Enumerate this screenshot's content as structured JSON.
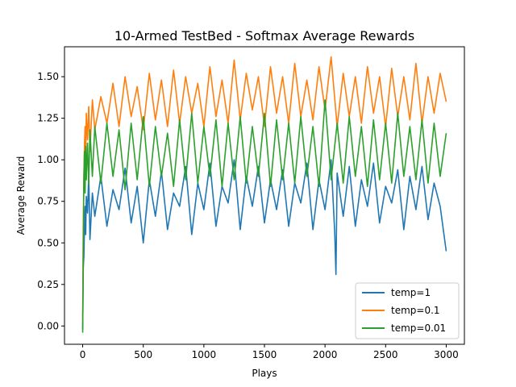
{
  "chart_data": {
    "type": "line",
    "title": "10-Armed TestBed - Softmax Average Rewards",
    "xlabel": "Plays",
    "ylabel": "Average Reward",
    "xlim": [
      -150,
      3150
    ],
    "ylim": [
      -0.11,
      1.68
    ],
    "xticks": [
      0,
      500,
      1000,
      1500,
      2000,
      2500,
      3000
    ],
    "yticks": [
      0.0,
      0.25,
      0.5,
      0.75,
      1.0,
      1.25,
      1.5
    ],
    "xtick_labels": [
      "0",
      "500",
      "1000",
      "1500",
      "2000",
      "2500",
      "3000"
    ],
    "ytick_labels": [
      "0.00",
      "0.25",
      "0.50",
      "0.75",
      "1.00",
      "1.25",
      "1.50"
    ],
    "legend_position": "lower-right",
    "grid": false,
    "series": [
      {
        "name": "temp=1",
        "color": "#1f77b4",
        "x": [
          0,
          5,
          10,
          15,
          20,
          25,
          30,
          40,
          50,
          60,
          80,
          100,
          150,
          200,
          250,
          300,
          350,
          400,
          450,
          500,
          550,
          600,
          650,
          700,
          750,
          800,
          850,
          900,
          950,
          1000,
          1050,
          1100,
          1150,
          1200,
          1250,
          1300,
          1350,
          1400,
          1450,
          1500,
          1550,
          1600,
          1650,
          1700,
          1750,
          1800,
          1850,
          1900,
          1950,
          2000,
          2050,
          2080,
          2090,
          2100,
          2150,
          2200,
          2250,
          2300,
          2350,
          2400,
          2450,
          2500,
          2550,
          2600,
          2650,
          2700,
          2750,
          2800,
          2850,
          2900,
          2950,
          3000
        ],
        "values": [
          -0.02,
          0.35,
          0.42,
          0.6,
          0.72,
          0.55,
          0.78,
          0.68,
          0.92,
          0.52,
          0.8,
          0.66,
          0.9,
          0.6,
          0.82,
          0.7,
          0.95,
          0.62,
          0.84,
          0.5,
          0.88,
          0.66,
          0.93,
          0.58,
          0.8,
          0.72,
          0.96,
          0.55,
          0.86,
          0.7,
          0.98,
          0.6,
          0.84,
          0.74,
          1.0,
          0.58,
          0.9,
          0.72,
          0.96,
          0.62,
          0.88,
          0.7,
          0.94,
          0.6,
          0.86,
          0.74,
          0.98,
          0.58,
          0.88,
          0.7,
          1.0,
          0.56,
          0.31,
          0.92,
          0.66,
          0.96,
          0.6,
          0.88,
          0.72,
          0.98,
          0.62,
          0.84,
          0.74,
          0.94,
          0.58,
          0.9,
          0.7,
          0.96,
          0.64,
          0.86,
          0.72,
          0.45
        ]
      },
      {
        "name": "temp=0.1",
        "color": "#ff7f0e",
        "x": [
          0,
          5,
          10,
          15,
          20,
          25,
          30,
          40,
          50,
          60,
          80,
          100,
          150,
          200,
          250,
          300,
          350,
          400,
          450,
          500,
          550,
          600,
          650,
          700,
          750,
          800,
          850,
          900,
          950,
          1000,
          1050,
          1100,
          1150,
          1200,
          1250,
          1300,
          1350,
          1400,
          1450,
          1500,
          1550,
          1600,
          1650,
          1700,
          1750,
          1800,
          1850,
          1900,
          1950,
          2000,
          2050,
          2100,
          2150,
          2200,
          2250,
          2300,
          2350,
          2400,
          2450,
          2500,
          2550,
          2600,
          2650,
          2700,
          2750,
          2800,
          2850,
          2900,
          2950,
          3000
        ],
        "values": [
          0.05,
          0.6,
          0.9,
          1.1,
          1.2,
          1.0,
          1.28,
          1.12,
          1.32,
          1.05,
          1.36,
          1.18,
          1.38,
          1.22,
          1.46,
          1.2,
          1.5,
          1.26,
          1.44,
          1.18,
          1.52,
          1.24,
          1.48,
          1.2,
          1.54,
          1.22,
          1.5,
          1.28,
          1.46,
          1.2,
          1.56,
          1.26,
          1.48,
          1.22,
          1.6,
          1.24,
          1.52,
          1.3,
          1.5,
          1.2,
          1.56,
          1.28,
          1.5,
          1.22,
          1.58,
          1.26,
          1.48,
          1.24,
          1.56,
          1.3,
          1.62,
          1.2,
          1.52,
          1.26,
          1.5,
          1.22,
          1.56,
          1.28,
          1.5,
          1.2,
          1.55,
          1.26,
          1.5,
          1.24,
          1.58,
          1.22,
          1.5,
          1.28,
          1.52,
          1.35
        ]
      },
      {
        "name": "temp=0.01",
        "color": "#2ca02c",
        "x": [
          0,
          5,
          10,
          15,
          20,
          25,
          30,
          40,
          50,
          60,
          80,
          100,
          150,
          200,
          250,
          300,
          350,
          400,
          450,
          500,
          550,
          600,
          650,
          700,
          750,
          800,
          850,
          900,
          950,
          1000,
          1050,
          1100,
          1150,
          1200,
          1250,
          1300,
          1350,
          1400,
          1450,
          1500,
          1550,
          1600,
          1650,
          1700,
          1750,
          1800,
          1850,
          1900,
          1950,
          2000,
          2050,
          2100,
          2150,
          2200,
          2250,
          2300,
          2350,
          2400,
          2450,
          2500,
          2550,
          2600,
          2650,
          2700,
          2750,
          2800,
          2850,
          2900,
          2950,
          3000
        ],
        "values": [
          -0.04,
          0.5,
          0.9,
          1.05,
          0.8,
          1.08,
          0.88,
          1.1,
          0.85,
          1.18,
          0.9,
          1.2,
          0.86,
          1.22,
          0.9,
          1.18,
          0.82,
          1.22,
          0.88,
          1.26,
          0.84,
          1.2,
          0.9,
          1.16,
          0.84,
          1.24,
          0.88,
          1.28,
          0.86,
          1.2,
          0.9,
          1.24,
          0.84,
          1.22,
          0.88,
          1.26,
          0.86,
          1.2,
          0.9,
          1.28,
          0.84,
          1.24,
          0.88,
          1.22,
          0.86,
          1.26,
          0.9,
          1.2,
          0.84,
          1.36,
          0.88,
          1.22,
          0.86,
          1.26,
          0.9,
          1.2,
          0.84,
          1.24,
          0.88,
          1.22,
          0.86,
          1.28,
          0.9,
          1.2,
          0.88,
          1.24,
          0.86,
          1.22,
          0.9,
          1.16
        ]
      }
    ]
  }
}
